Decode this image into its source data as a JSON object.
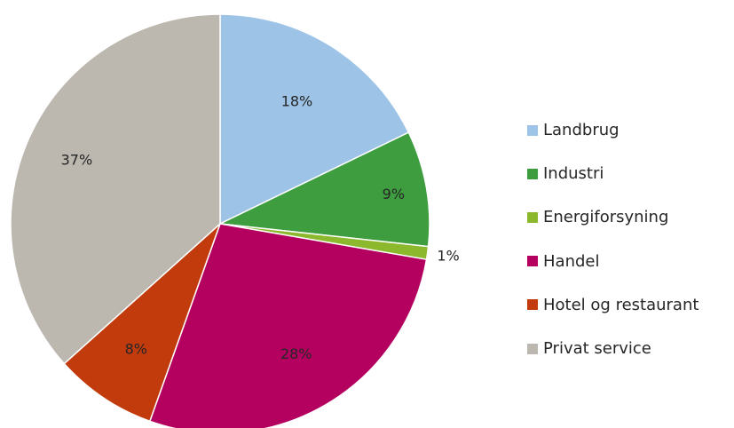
{
  "chart_data": {
    "type": "pie",
    "categories": [
      "Landbrug",
      "Industri",
      "Energiforsyning",
      "Handel",
      "Hotel og restaurant",
      "Privat service"
    ],
    "values": [
      18,
      9,
      1,
      28,
      8,
      37
    ],
    "value_labels": [
      "18%",
      "9%",
      "1%",
      "28%",
      "8%",
      "37%"
    ],
    "colors": [
      "#9dc3e6",
      "#3e9e3f",
      "#8cb82e",
      "#b4005f",
      "#c13b0c",
      "#bcb8b0"
    ],
    "start_angle_deg": 0,
    "direction": "clockwise",
    "legend_position": "right"
  }
}
